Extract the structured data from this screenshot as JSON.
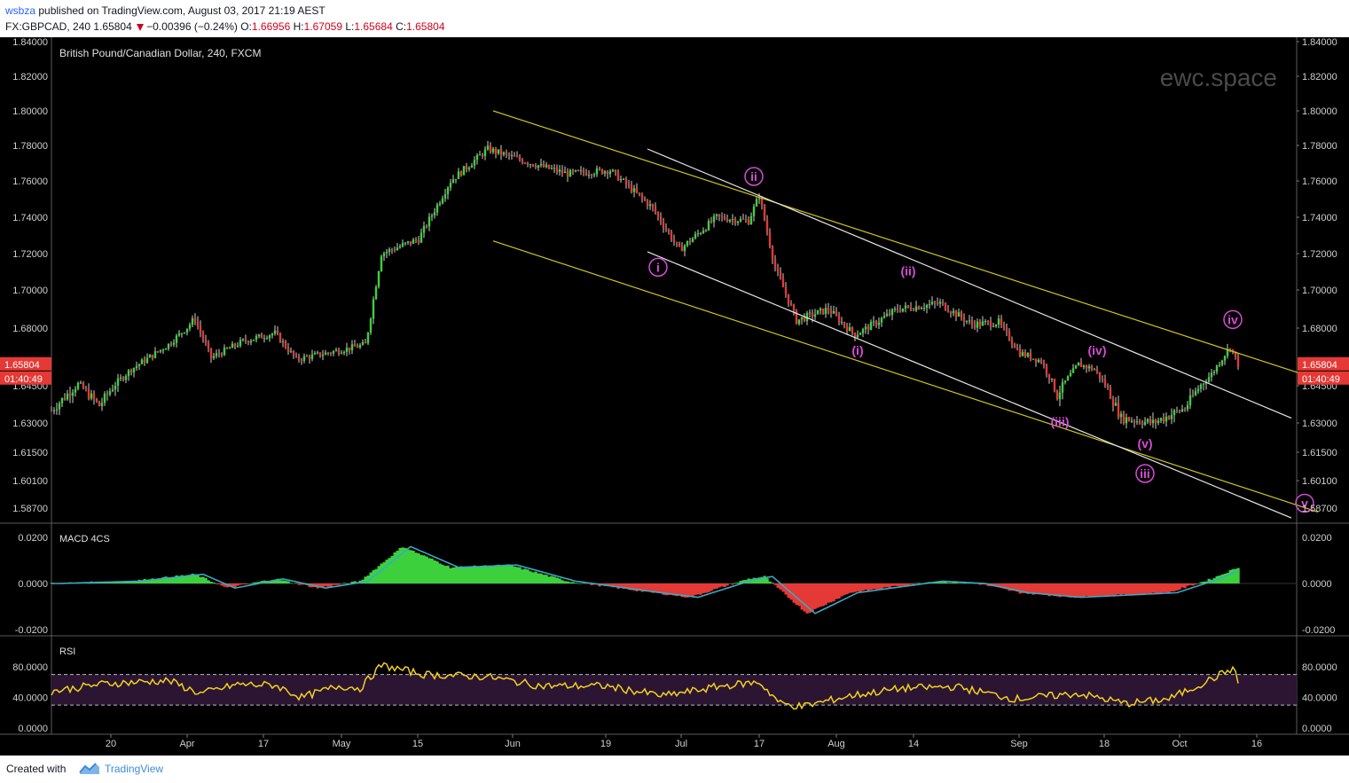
{
  "header": {
    "user": "wsbza",
    "published_text": "published on TradingView.com, August 03, 2017 21:19 AEST",
    "symbol_line": "FX:GBPCAD, 240",
    "last": "1.65804",
    "change": "−0.00396 (−0.24%)",
    "o_label": "O:",
    "o": "1.66956",
    "h_label": "H:",
    "h": "1.67059",
    "l_label": "L:",
    "l": "1.65684",
    "c_label": "C:",
    "c": "1.65804"
  },
  "watermark": "ewc.space",
  "colors": {
    "background": "#000000",
    "up": "#3cd13c",
    "down": "#e53935",
    "trendline_yellow": "#d4c51a",
    "trendline_white": "#e6e6e6",
    "wave_label": "#d64bd6",
    "macd_line": "#3aa8c8",
    "rsi_line": "#f2d01f",
    "rsi_band": "#2b1533",
    "price_tag": "#e53935"
  },
  "chart_data": [
    {
      "type": "candlestick",
      "title": "British Pound/Canadian Dollar, 240, FXCM",
      "y_ticks": [
        "1.84000",
        "1.82000",
        "1.80000",
        "1.78000",
        "1.76000",
        "1.74000",
        "1.72000",
        "1.70000",
        "1.68000",
        "1.64500",
        "1.63000",
        "1.61500",
        "1.60100",
        "1.58700"
      ],
      "last_price": "1.65804",
      "countdown": "01:40:49",
      "x_ticks": [
        "20",
        "Apr",
        "17",
        "May",
        "15",
        "Jun",
        "19",
        "Jul",
        "17",
        "Aug",
        "14",
        "Sep",
        "18",
        "Oct",
        "16"
      ],
      "anchors": [
        {
          "t": 0,
          "v": 1.635
        },
        {
          "t": 10,
          "v": 1.646
        },
        {
          "t": 18,
          "v": 1.637
        },
        {
          "t": 30,
          "v": 1.655
        },
        {
          "t": 44,
          "v": 1.67
        },
        {
          "t": 54,
          "v": 1.685
        },
        {
          "t": 60,
          "v": 1.662
        },
        {
          "t": 72,
          "v": 1.672
        },
        {
          "t": 84,
          "v": 1.677
        },
        {
          "t": 92,
          "v": 1.661
        },
        {
          "t": 104,
          "v": 1.665
        },
        {
          "t": 118,
          "v": 1.67
        },
        {
          "t": 124,
          "v": 1.72
        },
        {
          "t": 138,
          "v": 1.728
        },
        {
          "t": 150,
          "v": 1.76
        },
        {
          "t": 164,
          "v": 1.778
        },
        {
          "t": 180,
          "v": 1.77
        },
        {
          "t": 194,
          "v": 1.764
        },
        {
          "t": 210,
          "v": 1.766
        },
        {
          "t": 226,
          "v": 1.745
        },
        {
          "t": 236,
          "v": 1.722
        },
        {
          "t": 250,
          "v": 1.74
        },
        {
          "t": 262,
          "v": 1.738
        },
        {
          "t": 266,
          "v": 1.752
        },
        {
          "t": 272,
          "v": 1.712
        },
        {
          "t": 280,
          "v": 1.684
        },
        {
          "t": 292,
          "v": 1.69
        },
        {
          "t": 302,
          "v": 1.676
        },
        {
          "t": 318,
          "v": 1.69
        },
        {
          "t": 334,
          "v": 1.693
        },
        {
          "t": 346,
          "v": 1.682
        },
        {
          "t": 356,
          "v": 1.683
        },
        {
          "t": 364,
          "v": 1.665
        },
        {
          "t": 372,
          "v": 1.66
        },
        {
          "t": 378,
          "v": 1.641
        },
        {
          "t": 386,
          "v": 1.658
        },
        {
          "t": 392,
          "v": 1.655
        },
        {
          "t": 402,
          "v": 1.632
        },
        {
          "t": 414,
          "v": 1.63
        },
        {
          "t": 426,
          "v": 1.636
        },
        {
          "t": 436,
          "v": 1.652
        },
        {
          "t": 443,
          "v": 1.669
        },
        {
          "t": 446,
          "v": 1.658
        }
      ],
      "trendlines": [
        {
          "color": "yellow",
          "from": {
            "t": 166,
            "v": 1.8
          },
          "to": {
            "t": 476,
            "v": 1.649
          }
        },
        {
          "color": "yellow",
          "from": {
            "t": 166,
            "v": 1.727
          },
          "to": {
            "t": 476,
            "v": 1.585
          }
        },
        {
          "color": "white",
          "from": {
            "t": 224,
            "v": 1.778
          },
          "to": {
            "t": 466,
            "v": 1.632
          }
        },
        {
          "color": "white",
          "from": {
            "t": 224,
            "v": 1.721
          },
          "to": {
            "t": 466,
            "v": 1.582
          }
        }
      ],
      "wave_labels": [
        {
          "text": "i",
          "circled": true,
          "t": 228,
          "v": 1.7125
        },
        {
          "text": "ii",
          "circled": true,
          "t": 264,
          "v": 1.7625
        },
        {
          "text": "(i)",
          "circled": false,
          "t": 303,
          "v": 1.6665
        },
        {
          "text": "(ii)",
          "circled": false,
          "t": 322,
          "v": 1.7105
        },
        {
          "text": "(iii)",
          "circled": false,
          "t": 379,
          "v": 1.6305
        },
        {
          "text": "(iv)",
          "circled": false,
          "t": 393,
          "v": 1.6665
        },
        {
          "text": "(v)",
          "circled": false,
          "t": 411,
          "v": 1.6195
        },
        {
          "text": "iii",
          "circled": true,
          "t": 411,
          "v": 1.6045
        },
        {
          "text": "iv",
          "circled": true,
          "t": 444,
          "v": 1.6845
        },
        {
          "text": "v",
          "circled": true,
          "t": 471,
          "v": 1.5895
        }
      ]
    },
    {
      "type": "histogram",
      "title": "MACD 4CS",
      "y_ticks": [
        "0.0200",
        "0.0000",
        "-0.0200"
      ],
      "anchors": [
        {
          "t": 0,
          "v": 0.0
        },
        {
          "t": 30,
          "v": 0.001
        },
        {
          "t": 54,
          "v": 0.004
        },
        {
          "t": 66,
          "v": -0.002
        },
        {
          "t": 84,
          "v": 0.002
        },
        {
          "t": 100,
          "v": -0.002
        },
        {
          "t": 116,
          "v": 0.001
        },
        {
          "t": 132,
          "v": 0.016
        },
        {
          "t": 150,
          "v": 0.007
        },
        {
          "t": 172,
          "v": 0.008
        },
        {
          "t": 194,
          "v": 0.001
        },
        {
          "t": 226,
          "v": -0.004
        },
        {
          "t": 240,
          "v": -0.006
        },
        {
          "t": 262,
          "v": 0.002
        },
        {
          "t": 268,
          "v": 0.003
        },
        {
          "t": 284,
          "v": -0.013
        },
        {
          "t": 300,
          "v": -0.004
        },
        {
          "t": 332,
          "v": 0.001
        },
        {
          "t": 348,
          "v": 0.0
        },
        {
          "t": 364,
          "v": -0.004
        },
        {
          "t": 384,
          "v": -0.006
        },
        {
          "t": 402,
          "v": -0.005
        },
        {
          "t": 420,
          "v": -0.004
        },
        {
          "t": 436,
          "v": 0.002
        },
        {
          "t": 446,
          "v": 0.007
        }
      ]
    },
    {
      "type": "line",
      "title": "RSI",
      "y_ticks": [
        "80.0000",
        "40.0000",
        "0.0000"
      ],
      "band": [
        30,
        70
      ],
      "anchors": [
        {
          "t": 0,
          "v": 48
        },
        {
          "t": 20,
          "v": 58
        },
        {
          "t": 44,
          "v": 62
        },
        {
          "t": 56,
          "v": 45
        },
        {
          "t": 70,
          "v": 57
        },
        {
          "t": 84,
          "v": 56
        },
        {
          "t": 94,
          "v": 40
        },
        {
          "t": 108,
          "v": 55
        },
        {
          "t": 116,
          "v": 52
        },
        {
          "t": 124,
          "v": 82
        },
        {
          "t": 140,
          "v": 70
        },
        {
          "t": 164,
          "v": 67
        },
        {
          "t": 184,
          "v": 55
        },
        {
          "t": 208,
          "v": 55
        },
        {
          "t": 230,
          "v": 42
        },
        {
          "t": 252,
          "v": 55
        },
        {
          "t": 266,
          "v": 60
        },
        {
          "t": 274,
          "v": 32
        },
        {
          "t": 282,
          "v": 28
        },
        {
          "t": 300,
          "v": 42
        },
        {
          "t": 320,
          "v": 52
        },
        {
          "t": 340,
          "v": 54
        },
        {
          "t": 362,
          "v": 38
        },
        {
          "t": 386,
          "v": 45
        },
        {
          "t": 404,
          "v": 32
        },
        {
          "t": 420,
          "v": 38
        },
        {
          "t": 436,
          "v": 64
        },
        {
          "t": 444,
          "v": 78
        },
        {
          "t": 446,
          "v": 62
        }
      ]
    }
  ],
  "footer": {
    "created_with": "Created with",
    "brand": "TradingView"
  }
}
